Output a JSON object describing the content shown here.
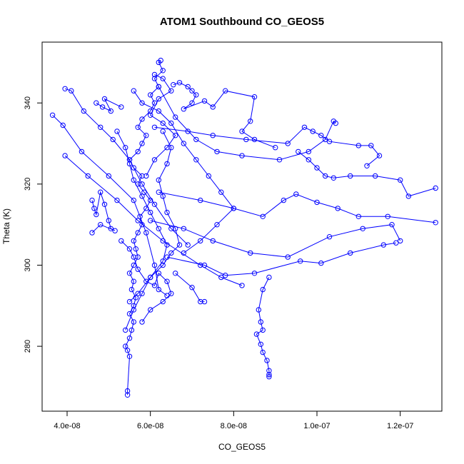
{
  "chart_data": {
    "type": "scatter",
    "title": "ATOM1 Southbound CO_GEOS5",
    "xlabel": "CO_GEOS5",
    "ylabel": "Theta (K)",
    "xlim": [
      3.4e-08,
      1.3e-07
    ],
    "ylim": [
      264,
      355
    ],
    "xticks": [
      4e-08,
      6e-08,
      8e-08,
      1e-07,
      1.2e-07
    ],
    "xtick_labels": [
      "4.0e-08",
      "6.0e-08",
      "8.0e-08",
      "1.0e-07",
      "1.2e-07"
    ],
    "yticks": [
      280,
      300,
      320,
      340
    ],
    "ytick_labels": [
      "280",
      "300",
      "320",
      "340"
    ],
    "grid": false,
    "connected": true,
    "marker": "open-circle",
    "color": "#0000ff",
    "series": [
      {
        "points": [
          [
            5.45e-08,
            268
          ],
          [
            5.45e-08,
            269
          ],
          [
            5.5e-08,
            277.5
          ],
          [
            5.45e-08,
            279
          ],
          [
            5.4e-08,
            280
          ],
          [
            5.5e-08,
            282
          ],
          [
            5.55e-08,
            284
          ],
          [
            5.6e-08,
            286
          ],
          [
            5.5e-08,
            288
          ],
          [
            5.6e-08,
            290
          ],
          [
            5.65e-08,
            292
          ],
          [
            5.55e-08,
            294
          ],
          [
            5.6e-08,
            296
          ],
          [
            5.5e-08,
            298
          ],
          [
            5.6e-08,
            300
          ],
          [
            5.7e-08,
            302
          ],
          [
            5.65e-08,
            304
          ],
          [
            5.6e-08,
            306
          ],
          [
            5.7e-08,
            308
          ],
          [
            5.8e-08,
            310
          ],
          [
            5.75e-08,
            312
          ],
          [
            5.9e-08,
            314
          ],
          [
            6e-08,
            316
          ],
          [
            5.85e-08,
            318
          ],
          [
            5.7e-08,
            320
          ],
          [
            5.8e-08,
            322
          ],
          [
            5.6e-08,
            324
          ],
          [
            5.5e-08,
            326
          ],
          [
            5.7e-08,
            328
          ],
          [
            5.8e-08,
            330
          ],
          [
            5.9e-08,
            332
          ],
          [
            5.7e-08,
            334
          ],
          [
            5.8e-08,
            336
          ],
          [
            6e-08,
            338
          ],
          [
            6.1e-08,
            340
          ],
          [
            6e-08,
            342
          ],
          [
            6.2e-08,
            344
          ],
          [
            6.1e-08,
            346
          ],
          [
            6.3e-08,
            348
          ],
          [
            6.2e-08,
            350
          ],
          [
            6.25e-08,
            350.5
          ]
        ]
      },
      {
        "points": [
          [
            3.65e-08,
            337
          ],
          [
            3.9e-08,
            334.5
          ],
          [
            4.35e-08,
            328
          ],
          [
            5e-08,
            322
          ],
          [
            5.6e-08,
            316
          ],
          [
            5.9e-08,
            308
          ],
          [
            6.1e-08,
            300
          ],
          [
            6.2e-08,
            294
          ],
          [
            6.4e-08,
            292.5
          ]
        ]
      },
      {
        "points": [
          [
            3.95e-08,
            343.5
          ],
          [
            4.1e-08,
            343
          ],
          [
            4.4e-08,
            338
          ],
          [
            4.8e-08,
            334
          ],
          [
            5.1e-08,
            331
          ],
          [
            5.5e-08,
            326
          ],
          [
            5.8e-08,
            320
          ],
          [
            6.1e-08,
            315
          ],
          [
            6.5e-08,
            309
          ],
          [
            6.9e-08,
            305
          ]
        ]
      },
      {
        "points": [
          [
            3.95e-08,
            327
          ],
          [
            4.5e-08,
            322
          ],
          [
            5.2e-08,
            316
          ],
          [
            5.7e-08,
            311
          ],
          [
            6.3e-08,
            306
          ],
          [
            7.2e-08,
            300
          ],
          [
            7.7e-08,
            297
          ],
          [
            8.2e-08,
            295
          ]
        ]
      },
      {
        "points": [
          [
            4.6e-08,
            316
          ],
          [
            4.65e-08,
            314
          ],
          [
            4.7e-08,
            312.5
          ],
          [
            4.8e-08,
            318
          ],
          [
            4.9e-08,
            315
          ],
          [
            5e-08,
            311
          ],
          [
            5.05e-08,
            309
          ],
          [
            5.15e-08,
            308.5
          ],
          [
            4.8e-08,
            310
          ],
          [
            4.6e-08,
            308
          ]
        ]
      },
      {
        "points": [
          [
            4.7e-08,
            340
          ],
          [
            4.85e-08,
            339
          ],
          [
            5.05e-08,
            338
          ],
          [
            4.9e-08,
            341
          ],
          [
            5.3e-08,
            339
          ]
        ]
      },
      {
        "points": [
          [
            6.55e-08,
            344.5
          ],
          [
            6.7e-08,
            345
          ],
          [
            6.9e-08,
            344
          ],
          [
            7e-08,
            343
          ],
          [
            7.1e-08,
            342
          ],
          [
            7e-08,
            340
          ],
          [
            6.8e-08,
            338.5
          ],
          [
            7.3e-08,
            340.5
          ],
          [
            7.5e-08,
            339
          ],
          [
            7.8e-08,
            343
          ],
          [
            8.5e-08,
            341.5
          ],
          [
            8.4e-08,
            335.5
          ],
          [
            8.2e-08,
            333
          ],
          [
            8.5e-08,
            331
          ],
          [
            9e-08,
            329
          ]
        ]
      },
      {
        "points": [
          [
            6.2e-08,
            344
          ],
          [
            6.6e-08,
            336.5
          ],
          [
            7.1e-08,
            331
          ],
          [
            7.6e-08,
            328
          ],
          [
            8.2e-08,
            327
          ],
          [
            9.1e-08,
            326
          ],
          [
            9.8e-08,
            328
          ],
          [
            1.02e-07,
            331
          ],
          [
            1.04e-07,
            335.5
          ],
          [
            1.045e-07,
            335
          ]
        ]
      },
      {
        "points": [
          [
            6.1e-08,
            334
          ],
          [
            6.9e-08,
            333
          ],
          [
            7.5e-08,
            332
          ],
          [
            8.3e-08,
            331
          ],
          [
            9.3e-08,
            330
          ],
          [
            9.7e-08,
            334
          ],
          [
            9.9e-08,
            333
          ],
          [
            1.01e-07,
            332
          ],
          [
            1.03e-07,
            330.5
          ],
          [
            1.1e-07,
            329.5
          ],
          [
            1.13e-07,
            329.5
          ],
          [
            1.15e-07,
            327
          ],
          [
            1.12e-07,
            324.5
          ]
        ]
      },
      {
        "points": [
          [
            9.55e-08,
            328
          ],
          [
            9.8e-08,
            326
          ],
          [
            1e-07,
            324
          ],
          [
            1.02e-07,
            322
          ],
          [
            1.04e-07,
            321.5
          ],
          [
            1.08e-07,
            322
          ],
          [
            1.14e-07,
            322
          ],
          [
            1.2e-07,
            321
          ],
          [
            1.22e-07,
            317
          ],
          [
            1.285e-07,
            319
          ]
        ]
      },
      {
        "points": [
          [
            6.2e-08,
            318
          ],
          [
            7.2e-08,
            316
          ],
          [
            8e-08,
            314
          ],
          [
            8.7e-08,
            312
          ],
          [
            9.2e-08,
            316
          ],
          [
            9.5e-08,
            317.5
          ],
          [
            1e-07,
            315.5
          ],
          [
            1.05e-07,
            314
          ],
          [
            1.1e-07,
            312
          ],
          [
            1.17e-07,
            312
          ],
          [
            1.285e-07,
            310.5
          ]
        ]
      },
      {
        "points": [
          [
            6e-08,
            311
          ],
          [
            6.8e-08,
            309
          ],
          [
            7.5e-08,
            306
          ],
          [
            8.4e-08,
            303
          ],
          [
            9.3e-08,
            302
          ],
          [
            1.03e-07,
            307
          ],
          [
            1.11e-07,
            309
          ],
          [
            1.18e-07,
            310
          ],
          [
            1.2e-07,
            306
          ]
        ]
      },
      {
        "points": [
          [
            6.4e-08,
            302
          ],
          [
            7.3e-08,
            300
          ],
          [
            7.8e-08,
            297.5
          ],
          [
            8.5e-08,
            298
          ],
          [
            9.6e-08,
            301
          ],
          [
            1.01e-07,
            300.5
          ],
          [
            1.08e-07,
            303
          ],
          [
            1.16e-07,
            305
          ],
          [
            1.19e-07,
            305.5
          ]
        ]
      },
      {
        "points": [
          [
            6.6e-08,
            298
          ],
          [
            7e-08,
            294.5
          ],
          [
            7.2e-08,
            291
          ],
          [
            7.3e-08,
            291
          ]
        ]
      },
      {
        "points": [
          [
            8.85e-08,
            297
          ],
          [
            8.7e-08,
            294
          ],
          [
            8.6e-08,
            289
          ],
          [
            8.65e-08,
            286
          ],
          [
            8.7e-08,
            284
          ],
          [
            8.55e-08,
            283
          ],
          [
            8.65e-08,
            280.5
          ],
          [
            8.7e-08,
            278.5
          ],
          [
            8.8e-08,
            276.5
          ],
          [
            8.85e-08,
            274
          ],
          [
            8.85e-08,
            273
          ],
          [
            8.85e-08,
            272.5
          ]
        ]
      },
      {
        "points": [
          [
            5.4e-08,
            284
          ],
          [
            5.6e-08,
            289
          ],
          [
            5.8e-08,
            293
          ],
          [
            6e-08,
            297
          ],
          [
            6.3e-08,
            300
          ],
          [
            6.5e-08,
            303
          ],
          [
            6.7e-08,
            305
          ],
          [
            6.6e-08,
            309
          ],
          [
            6.4e-08,
            313
          ],
          [
            6.3e-08,
            317
          ],
          [
            6.2e-08,
            321
          ],
          [
            6.4e-08,
            325
          ],
          [
            6.5e-08,
            329
          ],
          [
            6.3e-08,
            333
          ]
        ]
      },
      {
        "points": [
          [
            5.3e-08,
            306
          ],
          [
            5.5e-08,
            304
          ],
          [
            5.6e-08,
            302
          ],
          [
            5.7e-08,
            299
          ],
          [
            5.9e-08,
            296
          ],
          [
            6.1e-08,
            295
          ],
          [
            6.2e-08,
            298
          ],
          [
            6.4e-08,
            296
          ],
          [
            6.5e-08,
            293
          ],
          [
            6.3e-08,
            291
          ],
          [
            6e-08,
            289
          ],
          [
            5.8e-08,
            286
          ]
        ]
      },
      {
        "points": [
          [
            5.6e-08,
            343
          ],
          [
            5.8e-08,
            340
          ],
          [
            6.2e-08,
            338
          ],
          [
            6.5e-08,
            335
          ],
          [
            6.8e-08,
            330
          ],
          [
            7.1e-08,
            326
          ],
          [
            7.4e-08,
            322
          ],
          [
            7.7e-08,
            318
          ],
          [
            8e-08,
            314
          ],
          [
            7.6e-08,
            310
          ],
          [
            7.2e-08,
            306
          ],
          [
            6.8e-08,
            303
          ]
        ]
      },
      {
        "points": [
          [
            5.2e-08,
            333
          ],
          [
            5.4e-08,
            329
          ],
          [
            5.5e-08,
            325
          ],
          [
            5.6e-08,
            321
          ],
          [
            5.8e-08,
            317
          ],
          [
            6e-08,
            313
          ],
          [
            6.2e-08,
            309
          ],
          [
            6.4e-08,
            305
          ],
          [
            6.3e-08,
            301
          ],
          [
            6e-08,
            297
          ],
          [
            5.7e-08,
            293
          ],
          [
            5.5e-08,
            291
          ]
        ]
      },
      {
        "points": [
          [
            6.1e-08,
            347
          ],
          [
            6.3e-08,
            346
          ],
          [
            6.5e-08,
            343
          ],
          [
            6.2e-08,
            341
          ],
          [
            6e-08,
            337
          ],
          [
            6.3e-08,
            335
          ],
          [
            6.6e-08,
            332
          ],
          [
            6.4e-08,
            329
          ],
          [
            6.1e-08,
            326
          ],
          [
            5.9e-08,
            322
          ]
        ]
      }
    ]
  }
}
